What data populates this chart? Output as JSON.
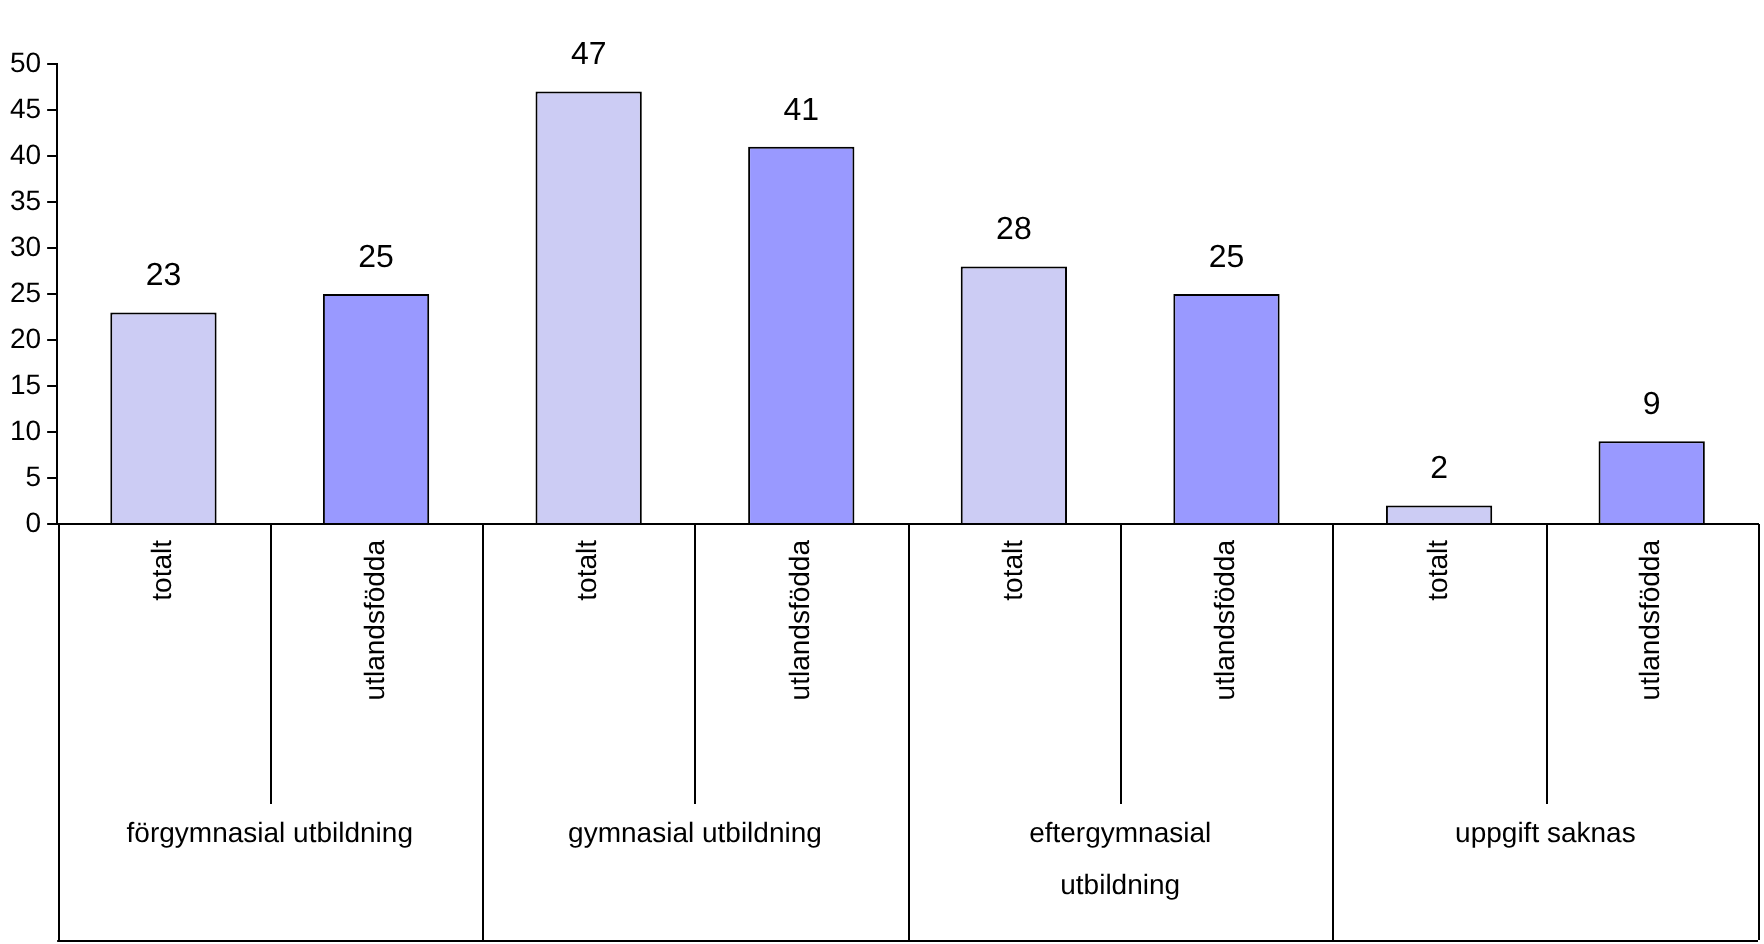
{
  "chart_data": {
    "type": "bar",
    "categories": [
      "totalt",
      "utlandsfödda",
      "totalt",
      "utlandsfödda",
      "totalt",
      "utlandsfödda",
      "totalt",
      "utlandsfödda"
    ],
    "values": [
      23,
      25,
      47,
      41,
      28,
      25,
      2,
      9
    ],
    "colors": [
      "#ccccf4",
      "#9999ff",
      "#ccccf4",
      "#9999ff",
      "#ccccf4",
      "#9999ff",
      "#ccccf4",
      "#9999ff"
    ],
    "ylim": [
      0,
      50
    ],
    "yticks": [
      0,
      5,
      10,
      15,
      20,
      25,
      30,
      35,
      40,
      45,
      50
    ],
    "annotations": [
      "förgymnasial utbildning",
      "gymnasial utbildning",
      "eftergymnasial utbildning",
      "uppgift saknas"
    ],
    "data_labels": true,
    "grid": false,
    "legend": false
  }
}
